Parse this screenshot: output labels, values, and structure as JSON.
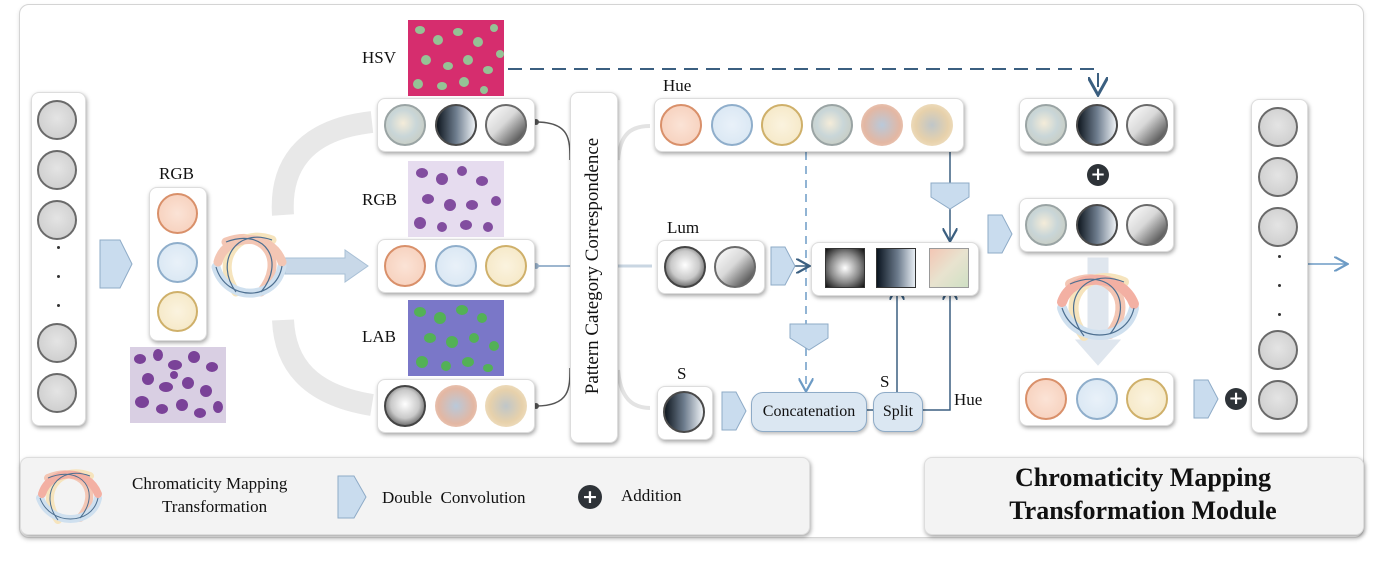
{
  "labels": {
    "hsv": "HSV",
    "rgb_top": "RGB",
    "rgb_mid": "RGB",
    "lab": "LAB",
    "pattern": "Pattern Category Correspondence",
    "hue_top": "Hue",
    "lum": "Lum",
    "s_bottom": "S",
    "s_split": "S",
    "hue_split": "Hue",
    "concatenation": "Concatenation",
    "split": "Split"
  },
  "legend": {
    "cmt_line1": "Chromaticity Mapping",
    "cmt_line2": "Transformation",
    "double_conv": "Double  Convolution",
    "addition": "Addition"
  },
  "module_title": {
    "line1": "Chromaticity Mapping",
    "line2": "Transformation Module"
  },
  "colors": {
    "arrow_blue": "#8eabc7",
    "line_dark": "#3b5f80",
    "hsv_bg": "#d62d6e",
    "rgb_bg": "#c9b3da",
    "lab_bg": "#7a77c8"
  }
}
